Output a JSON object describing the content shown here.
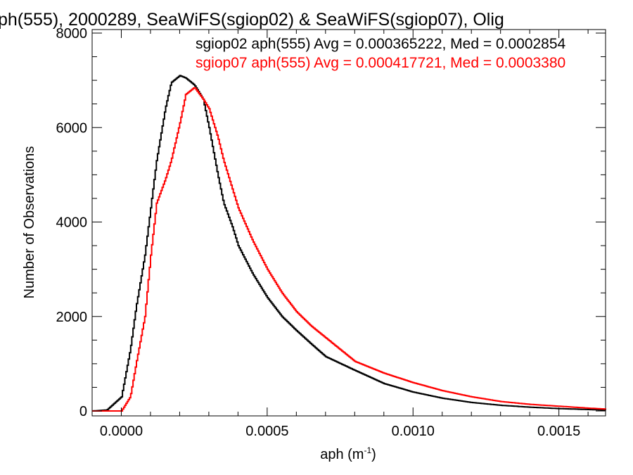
{
  "chart_data": {
    "type": "line",
    "title": "ph(555), 2000289, SeaWiFS(sgiop02) & SeaWiFS(sgiop07), Olig",
    "xlabel_main": "aph (m",
    "xlabel_sup": "-1",
    "xlabel_close": ")",
    "ylabel": "Number of Observations",
    "xlim": [
      -0.0001,
      0.00166
    ],
    "ylim": [
      0,
      8000
    ],
    "x_ticks": [
      0.0,
      0.0005,
      0.001,
      0.0015
    ],
    "x_tick_labels": [
      "0.0000",
      "0.0005",
      "0.0010",
      "0.0015"
    ],
    "y_ticks": [
      0,
      2000,
      4000,
      6000,
      8000
    ],
    "y_tick_labels": [
      "0",
      "2000",
      "4000",
      "6000",
      "8000"
    ],
    "grid": false,
    "legend_position": "top-right",
    "legend": [
      "sgiop02 aph(555) Avg = 0.000365222, Med = 0.0002854",
      "sgiop07 aph(555) Avg = 0.000417721, Med = 0.0003380"
    ],
    "series": [
      {
        "name": "sgiop02 aph(555)",
        "color": "#000000",
        "x": [
          -0.0001,
          -5e-05,
          0.0,
          3e-05,
          5e-05,
          8e-05,
          0.0001,
          0.00012,
          0.00015,
          0.00017,
          0.0002,
          0.00022,
          0.00025,
          0.00028,
          0.0003,
          0.00033,
          0.00035,
          0.00038,
          0.0004,
          0.00045,
          0.0005,
          0.00055,
          0.0006,
          0.00065,
          0.0007,
          0.0008,
          0.0009,
          0.001,
          0.0011,
          0.0012,
          0.0013,
          0.0014,
          0.0015,
          0.0016,
          0.00166
        ],
        "y": [
          0,
          20,
          300,
          1300,
          2200,
          3300,
          4300,
          5300,
          6400,
          6950,
          7100,
          7050,
          6900,
          6600,
          6000,
          5000,
          4400,
          3900,
          3500,
          2900,
          2400,
          2000,
          1700,
          1420,
          1150,
          860,
          580,
          400,
          270,
          180,
          120,
          80,
          50,
          30,
          20
        ]
      },
      {
        "name": "sgiop07 aph(555)",
        "color": "#ff0000",
        "x": [
          -0.0001,
          0.0,
          3e-05,
          5e-05,
          8e-05,
          0.0001,
          0.00012,
          0.00015,
          0.00017,
          0.0002,
          0.00022,
          0.00025,
          0.00028,
          0.0003,
          0.00033,
          0.00035,
          0.00038,
          0.0004,
          0.00045,
          0.0005,
          0.00055,
          0.0006,
          0.00065,
          0.0007,
          0.0008,
          0.0009,
          0.001,
          0.0011,
          0.0012,
          0.0013,
          0.0014,
          0.0015,
          0.0016,
          0.00166
        ],
        "y": [
          0,
          0,
          300,
          1000,
          2000,
          3300,
          4400,
          4900,
          5300,
          6100,
          6700,
          6850,
          6600,
          6400,
          5800,
          5300,
          4700,
          4300,
          3600,
          3000,
          2500,
          2100,
          1800,
          1550,
          1050,
          800,
          600,
          430,
          300,
          200,
          140,
          100,
          60,
          40
        ]
      }
    ]
  }
}
